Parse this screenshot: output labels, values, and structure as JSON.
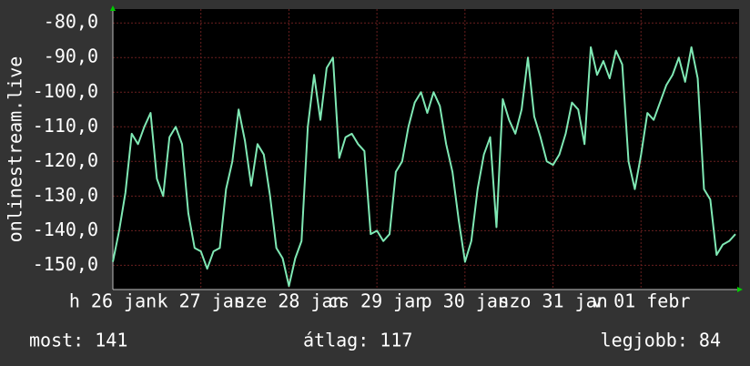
{
  "chart_data": {
    "type": "line",
    "y_label": "onlinestream.live",
    "values": [
      -149,
      -140,
      -129,
      -112,
      -115,
      -110,
      -106,
      -125,
      -130,
      -113,
      -110,
      -115,
      -135,
      -145,
      -146,
      -151,
      -146,
      -145,
      -128,
      -120,
      -105,
      -114,
      -127,
      -115,
      -118,
      -130,
      -145,
      -148,
      -156,
      -148,
      -143,
      -110,
      -95,
      -108,
      -93,
      -90,
      -119,
      -113,
      -112,
      -115,
      -117,
      -141,
      -140,
      -143,
      -141,
      -123,
      -120,
      -110,
      -103,
      -100,
      -106,
      -100,
      -104,
      -115,
      -123,
      -137,
      -149,
      -143,
      -128,
      -118,
      -113,
      -139,
      -102,
      -108,
      -112,
      -105,
      -90,
      -107,
      -113,
      -120,
      -121,
      -118,
      -112,
      -103,
      -105,
      -115,
      -87,
      -95,
      -91,
      -96,
      -88,
      -92,
      -120,
      -128,
      -118,
      -106,
      -108,
      -103,
      -98,
      -95,
      -90,
      -97,
      -87,
      -96,
      -128,
      -131,
      -147,
      -144,
      -143,
      -141
    ],
    "color": "#7fe8b4",
    "xlim": [
      0,
      99.6
    ],
    "xticks": [
      {
        "value": 0,
        "label": "h 26 jan"
      },
      {
        "value": 14,
        "label": "k 27 jan"
      },
      {
        "value": 28,
        "label": "sze 28 jan"
      },
      {
        "value": 42,
        "label": "cs 29 jan"
      },
      {
        "value": 56,
        "label": "p 30 jan"
      },
      {
        "value": 70,
        "label": "szo 31 jan"
      },
      {
        "value": 84,
        "label": "v 01 febr"
      }
    ],
    "ylim": [
      -157,
      -76
    ],
    "yticks": [
      {
        "value": -80,
        "label": "-80,0"
      },
      {
        "value": -90,
        "label": "-90,0"
      },
      {
        "value": -100,
        "label": "-100,0"
      },
      {
        "value": -110,
        "label": "-110,0"
      },
      {
        "value": -120,
        "label": "-120,0"
      },
      {
        "value": -130,
        "label": "-130,0"
      },
      {
        "value": -140,
        "label": "-140,0"
      },
      {
        "value": -150,
        "label": "-150,0"
      }
    ],
    "grid": true,
    "annotations": [
      "most: 141",
      "átlag: 117",
      "legjobb: 84"
    ]
  }
}
